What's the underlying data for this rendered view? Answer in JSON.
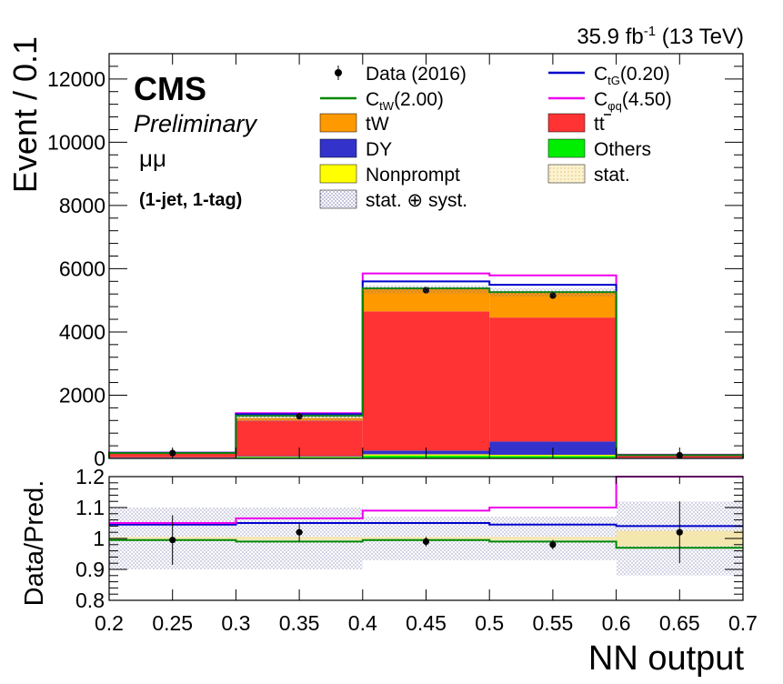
{
  "header": {
    "lumi_value": "35.9 fb",
    "lumi_exp": "-1",
    "lumi_energy": " (13 TeV)"
  },
  "labels": {
    "cms": "CMS",
    "preliminary": "Preliminary",
    "channel": "μμ",
    "category": "(1-jet, 1-tag)"
  },
  "legend": {
    "data": "Data (2016)",
    "ctG_main": "C",
    "ctG_sub": "tG",
    "ctG_val": "(0.20)",
    "ctW_main": "C",
    "ctW_sub": "tW",
    "ctW_val": "(2.00)",
    "cphiq_main": "C",
    "cphiq_sub": "φq",
    "cphiq_val": "(4.50)",
    "tw": "tW",
    "ttbar": "tt",
    "dy": "DY",
    "others": "Others",
    "nonprompt": "Nonprompt",
    "stat": "stat.",
    "statsyst": "stat. ⊕ syst."
  },
  "colors": {
    "tw": "#ff9900",
    "ttbar": "#ff3333",
    "dy": "#3333cc",
    "others": "#00ee00",
    "nonprompt": "#ffff00",
    "ctW": "#008800",
    "ctG": "#0000cc",
    "cphiq": "#ee00ee",
    "stat_band": "#f5e6a6",
    "syst_band": "#9a9ac8"
  },
  "chart_data": [
    {
      "type": "bar",
      "stacked": true,
      "xlabel": "NN output",
      "ylabel": "Event / 0.1",
      "xlim": [
        0.2,
        0.7
      ],
      "ylim": [
        0,
        12800
      ],
      "yticks": [
        0,
        2000,
        4000,
        6000,
        8000,
        10000,
        12000
      ],
      "bin_edges": [
        0.2,
        0.3,
        0.4,
        0.5,
        0.6,
        0.7
      ],
      "stack_order": [
        "Others",
        "Nonprompt",
        "DY",
        "tt",
        "tW"
      ],
      "series": [
        {
          "name": "Others",
          "values": [
            15,
            40,
            90,
            80,
            10
          ]
        },
        {
          "name": "Nonprompt",
          "values": [
            5,
            15,
            40,
            35,
            5
          ]
        },
        {
          "name": "DY",
          "values": [
            15,
            20,
            120,
            420,
            8
          ]
        },
        {
          "name": "tt",
          "values": [
            115,
            1125,
            4400,
            3920,
            62
          ]
        },
        {
          "name": "tW",
          "values": [
            20,
            80,
            700,
            800,
            15
          ]
        }
      ],
      "data_points": {
        "name": "Data (2016)",
        "x": [
          0.25,
          0.35,
          0.45,
          0.55,
          0.65
        ],
        "y": [
          170,
          1330,
          5320,
          5150,
          100
        ]
      },
      "eft_lines": [
        {
          "name": "C_tW(2.00)",
          "values": [
            170,
            1350,
            5380,
            5260,
            103
          ]
        },
        {
          "name": "C_tG(0.20)",
          "values": [
            178,
            1400,
            5600,
            5490,
            104
          ]
        },
        {
          "name": "C_φq(4.50)",
          "values": [
            180,
            1430,
            5850,
            5790,
            120
          ]
        }
      ],
      "total_prediction": [
        170,
        1280,
        5350,
        5255,
        100
      ],
      "stat_syst_rel_uncertainty": [
        0.1,
        0.1,
        0.025,
        0.025,
        0.08
      ]
    },
    {
      "type": "line",
      "xlabel": "NN output",
      "ylabel": "Data/Pred.",
      "xlim": [
        0.2,
        0.7
      ],
      "ylim": [
        0.8,
        1.2
      ],
      "yticks": [
        0.8,
        0.9,
        1,
        1.1,
        1.2
      ],
      "xticks": [
        0.2,
        0.25,
        0.3,
        0.35,
        0.4,
        0.45,
        0.5,
        0.55,
        0.6,
        0.65,
        0.7
      ],
      "data_points": {
        "x": [
          0.25,
          0.35,
          0.45,
          0.55,
          0.65
        ],
        "y": [
          0.995,
          1.02,
          0.99,
          0.98,
          1.02
        ],
        "err": [
          0.08,
          0.03,
          0.015,
          0.015,
          0.1
        ]
      },
      "series": [
        {
          "name": "C_tW(2.00)",
          "values": [
            0.995,
            0.99,
            0.995,
            0.99,
            0.97
          ]
        },
        {
          "name": "C_tG(0.20)",
          "values": [
            1.045,
            1.05,
            1.05,
            1.045,
            1.04
          ]
        },
        {
          "name": "C_φq(4.50)",
          "values": [
            1.05,
            1.065,
            1.09,
            1.1,
            1.2
          ]
        }
      ],
      "syst_band_halfwidth": [
        0.1,
        0.1,
        0.07,
        0.07,
        0.12
      ],
      "stat_band_halfwidth": [
        0.005,
        0.005,
        0.005,
        0.005,
        0.025
      ]
    }
  ]
}
